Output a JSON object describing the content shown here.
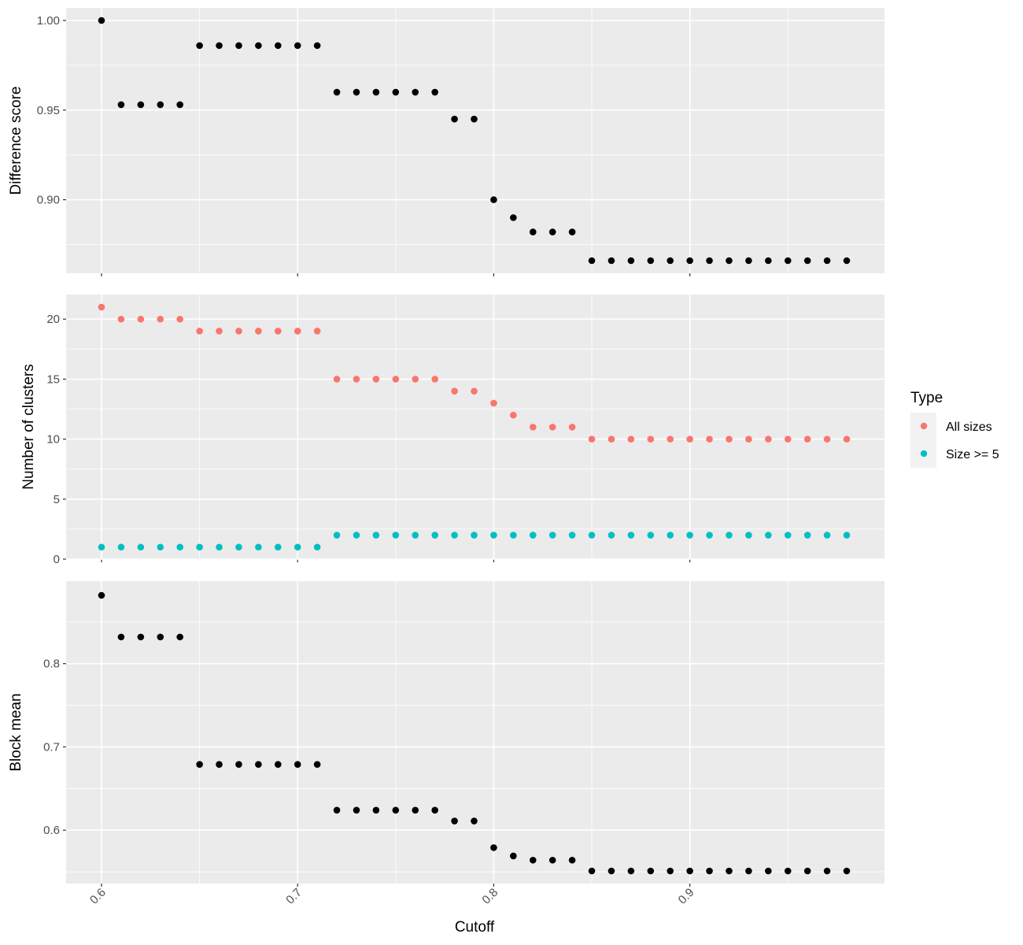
{
  "chart_data": [
    {
      "type": "scatter",
      "ylabel": "Difference score",
      "yticks": [
        0.9,
        0.95,
        1.0
      ],
      "ytick_labels": [
        "0.90",
        "0.95",
        "1.00"
      ],
      "ylim": [
        0.866,
        1.0
      ],
      "series": [
        {
          "color": "#000000",
          "x": [
            0.6,
            0.61,
            0.62,
            0.63,
            0.64,
            0.65,
            0.66,
            0.67,
            0.68,
            0.69,
            0.7,
            0.71,
            0.72,
            0.73,
            0.74,
            0.75,
            0.76,
            0.77,
            0.78,
            0.79,
            0.8,
            0.81,
            0.82,
            0.83,
            0.84,
            0.85,
            0.86,
            0.87,
            0.88,
            0.89,
            0.9,
            0.91,
            0.92,
            0.93,
            0.94,
            0.95,
            0.96,
            0.97,
            0.98
          ],
          "y": [
            1.0,
            0.953,
            0.953,
            0.953,
            0.953,
            0.986,
            0.986,
            0.986,
            0.986,
            0.986,
            0.986,
            0.986,
            0.96,
            0.96,
            0.96,
            0.96,
            0.96,
            0.96,
            0.945,
            0.945,
            0.9,
            0.89,
            0.882,
            0.882,
            0.882,
            0.866,
            0.866,
            0.866,
            0.866,
            0.866,
            0.866,
            0.866,
            0.866,
            0.866,
            0.866,
            0.866,
            0.866,
            0.866,
            0.866
          ]
        }
      ]
    },
    {
      "type": "scatter",
      "ylabel": "Number of clusters",
      "yticks": [
        0,
        5,
        10,
        15,
        20
      ],
      "ytick_labels": [
        "0",
        "5",
        "10",
        "15",
        "20"
      ],
      "ylim": [
        0,
        21
      ],
      "series": [
        {
          "name": "All sizes",
          "color": "#f8766d",
          "x": [
            0.6,
            0.61,
            0.62,
            0.63,
            0.64,
            0.65,
            0.66,
            0.67,
            0.68,
            0.69,
            0.7,
            0.71,
            0.72,
            0.73,
            0.74,
            0.75,
            0.76,
            0.77,
            0.78,
            0.79,
            0.8,
            0.81,
            0.82,
            0.83,
            0.84,
            0.85,
            0.86,
            0.87,
            0.88,
            0.89,
            0.9,
            0.91,
            0.92,
            0.93,
            0.94,
            0.95,
            0.96,
            0.97,
            0.98
          ],
          "y": [
            21,
            20,
            20,
            20,
            20,
            19,
            19,
            19,
            19,
            19,
            19,
            19,
            15,
            15,
            15,
            15,
            15,
            15,
            14,
            14,
            13,
            12,
            11,
            11,
            11,
            10,
            10,
            10,
            10,
            10,
            10,
            10,
            10,
            10,
            10,
            10,
            10,
            10,
            10
          ]
        },
        {
          "name": "Size >= 5",
          "color": "#00bfc4",
          "x": [
            0.6,
            0.61,
            0.62,
            0.63,
            0.64,
            0.65,
            0.66,
            0.67,
            0.68,
            0.69,
            0.7,
            0.71,
            0.72,
            0.73,
            0.74,
            0.75,
            0.76,
            0.77,
            0.78,
            0.79,
            0.8,
            0.81,
            0.82,
            0.83,
            0.84,
            0.85,
            0.86,
            0.87,
            0.88,
            0.89,
            0.9,
            0.91,
            0.92,
            0.93,
            0.94,
            0.95,
            0.96,
            0.97,
            0.98
          ],
          "y": [
            1,
            1,
            1,
            1,
            1,
            1,
            1,
            1,
            1,
            1,
            1,
            1,
            2,
            2,
            2,
            2,
            2,
            2,
            2,
            2,
            2,
            2,
            2,
            2,
            2,
            2,
            2,
            2,
            2,
            2,
            2,
            2,
            2,
            2,
            2,
            2,
            2,
            2,
            2
          ]
        }
      ]
    },
    {
      "type": "scatter",
      "ylabel": "Block mean",
      "yticks": [
        0.6,
        0.7,
        0.8
      ],
      "ytick_labels": [
        "0.6",
        "0.7",
        "0.8"
      ],
      "ylim": [
        0.551,
        0.882
      ],
      "series": [
        {
          "color": "#000000",
          "x": [
            0.6,
            0.61,
            0.62,
            0.63,
            0.64,
            0.65,
            0.66,
            0.67,
            0.68,
            0.69,
            0.7,
            0.71,
            0.72,
            0.73,
            0.74,
            0.75,
            0.76,
            0.77,
            0.78,
            0.79,
            0.8,
            0.81,
            0.82,
            0.83,
            0.84,
            0.85,
            0.86,
            0.87,
            0.88,
            0.89,
            0.9,
            0.91,
            0.92,
            0.93,
            0.94,
            0.95,
            0.96,
            0.97,
            0.98
          ],
          "y": [
            0.882,
            0.832,
            0.832,
            0.832,
            0.832,
            0.679,
            0.679,
            0.679,
            0.679,
            0.679,
            0.679,
            0.679,
            0.624,
            0.624,
            0.624,
            0.624,
            0.624,
            0.624,
            0.611,
            0.611,
            0.579,
            0.569,
            0.564,
            0.564,
            0.564,
            0.551,
            0.551,
            0.551,
            0.551,
            0.551,
            0.551,
            0.551,
            0.551,
            0.551,
            0.551,
            0.551,
            0.551,
            0.551,
            0.551
          ]
        }
      ]
    }
  ],
  "xaxis": {
    "label": "Cutoff",
    "ticks": [
      0.6,
      0.7,
      0.8,
      0.9
    ],
    "tick_labels": [
      "0.6",
      "0.7",
      "0.8",
      "0.9"
    ],
    "xlim": [
      0.6,
      0.98
    ],
    "tick_label_rotation": -45
  },
  "legend": {
    "title": "Type",
    "placement": "right",
    "items": [
      {
        "label": "All sizes",
        "color": "#f8766d"
      },
      {
        "label": "Size >= 5",
        "color": "#00bfc4"
      }
    ]
  }
}
